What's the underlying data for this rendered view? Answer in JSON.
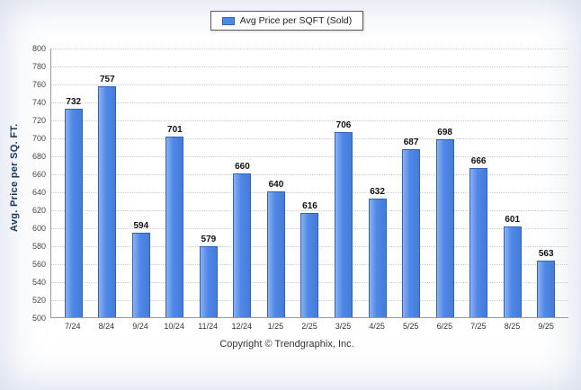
{
  "legend": {
    "label": "Avg Price per SQFT (Sold)"
  },
  "footer": {
    "copyright": "Copyright © Trendgraphix, Inc."
  },
  "chart_data": {
    "type": "bar",
    "title": "",
    "legend": "Avg Price per SQFT (Sold)",
    "legend_position": "top",
    "xlabel": "",
    "ylabel": "Avg. Price per SQ. FT.",
    "ylim": [
      500,
      800
    ],
    "ytick_step": 20,
    "grid": true,
    "bar_color": "#4d87e8",
    "categories": [
      "7/24",
      "8/24",
      "9/24",
      "10/24",
      "11/24",
      "12/24",
      "1/25",
      "2/25",
      "3/25",
      "4/25",
      "5/25",
      "6/25",
      "7/25",
      "8/25",
      "9/25"
    ],
    "values": [
      732,
      757,
      594,
      701,
      579,
      660,
      640,
      616,
      706,
      632,
      687,
      698,
      666,
      601,
      563
    ]
  }
}
